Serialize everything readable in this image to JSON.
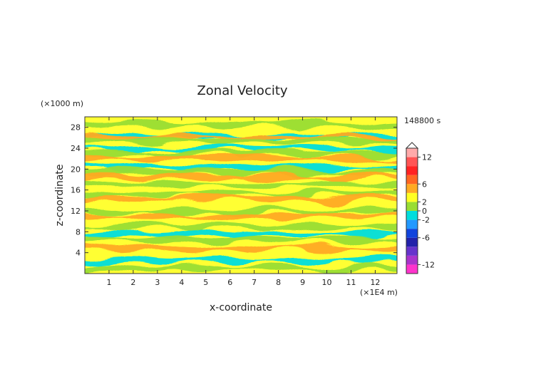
{
  "chart_data": {
    "type": "heatmap",
    "title": "Zonal Velocity",
    "xlabel": "x-coordinate",
    "ylabel": "z-coordinate",
    "x_unit": "(×1E4 m)",
    "y_unit": "(×1000 m)",
    "time_label": "148800 s",
    "xlim": [
      0,
      12.9
    ],
    "ylim": [
      0,
      30
    ],
    "x_ticks": [
      "1",
      "2",
      "3",
      "4",
      "5",
      "6",
      "7",
      "8",
      "9",
      "10",
      "11",
      "12"
    ],
    "y_ticks": [
      "4",
      "8",
      "12",
      "16",
      "20",
      "24",
      "28"
    ],
    "colorbar": {
      "levels": [
        -14,
        -12,
        -10,
        -8,
        -6,
        -4,
        -2,
        0,
        2,
        4,
        6,
        8,
        10,
        12,
        14
      ],
      "tick_labels": [
        "-12",
        "-6",
        "-2",
        "0",
        "2",
        "6",
        "12"
      ],
      "colors": [
        "#ff33cc",
        "#aa33cc",
        "#6633cc",
        "#2222aa",
        "#1144dd",
        "#2299ff",
        "#00dddd",
        "#99dd33",
        "#ffff22",
        "#ffaa22",
        "#ff6622",
        "#ff2222",
        "#ff5555",
        "#ffaaaa"
      ]
    },
    "background_color": "#ffff33",
    "bands": [
      {
        "z": 28.5,
        "color": "#99dd33"
      },
      {
        "z": 26.5,
        "color": "#00dddd"
      },
      {
        "z": 26.2,
        "color": "#ffaa22"
      },
      {
        "z": 25.5,
        "color": "#99dd33"
      },
      {
        "z": 24.0,
        "color": "#00dddd"
      },
      {
        "z": 23.0,
        "color": "#99dd33"
      },
      {
        "z": 22.0,
        "color": "#ffaa22"
      },
      {
        "z": 20.3,
        "color": "#00dddd"
      },
      {
        "z": 19.5,
        "color": "#99dd33"
      },
      {
        "z": 18.6,
        "color": "#ffaa22"
      },
      {
        "z": 17.2,
        "color": "#99dd33"
      },
      {
        "z": 15.2,
        "color": "#99dd33"
      },
      {
        "z": 14.2,
        "color": "#ffaa22"
      },
      {
        "z": 12.0,
        "color": "#99dd33"
      },
      {
        "z": 11.0,
        "color": "#ffaa22"
      },
      {
        "z": 9.0,
        "color": "#99dd33"
      },
      {
        "z": 7.6,
        "color": "#00dddd"
      },
      {
        "z": 6.5,
        "color": "#99dd33"
      },
      {
        "z": 4.8,
        "color": "#ffaa22"
      },
      {
        "z": 2.5,
        "color": "#00dddd"
      },
      {
        "z": 1.0,
        "color": "#99dd33"
      }
    ]
  }
}
